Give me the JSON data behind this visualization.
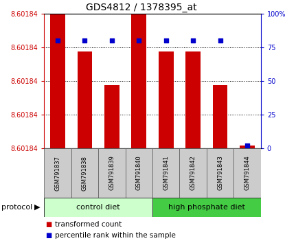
{
  "title": "GDS4812 / 1378395_at",
  "samples": [
    "GSM791837",
    "GSM791838",
    "GSM791839",
    "GSM791840",
    "GSM791841",
    "GSM791842",
    "GSM791843",
    "GSM791844"
  ],
  "bar_heights": [
    100,
    72,
    47,
    100,
    72,
    72,
    47,
    2
  ],
  "percentile_ranks": [
    80,
    80,
    80,
    80,
    80,
    80,
    80,
    2
  ],
  "yticks_right": [
    0,
    25,
    50,
    75,
    100
  ],
  "yticks_left_labels": [
    "8.60184",
    "8.60184",
    "8.60184",
    "8.60184",
    "8.60184"
  ],
  "protocol_groups": [
    {
      "label": "control diet",
      "start": 0,
      "end": 4,
      "color": "#ccffcc"
    },
    {
      "label": "high phosphate diet",
      "start": 4,
      "end": 8,
      "color": "#44cc44"
    }
  ],
  "bar_color": "#cc0000",
  "percentile_color": "#0000cc",
  "left_axis_color": "#cc0000",
  "right_axis_color": "#0000cc",
  "legend_items": [
    {
      "label": "transformed count",
      "color": "#cc0000"
    },
    {
      "label": "percentile rank within the sample",
      "color": "#0000cc"
    }
  ],
  "protocol_label": "protocol",
  "xlabels_bg": "#cccccc",
  "title_fontsize": 10,
  "tick_fontsize": 7,
  "sample_fontsize": 6,
  "protocol_fontsize": 8,
  "legend_fontsize": 7.5
}
